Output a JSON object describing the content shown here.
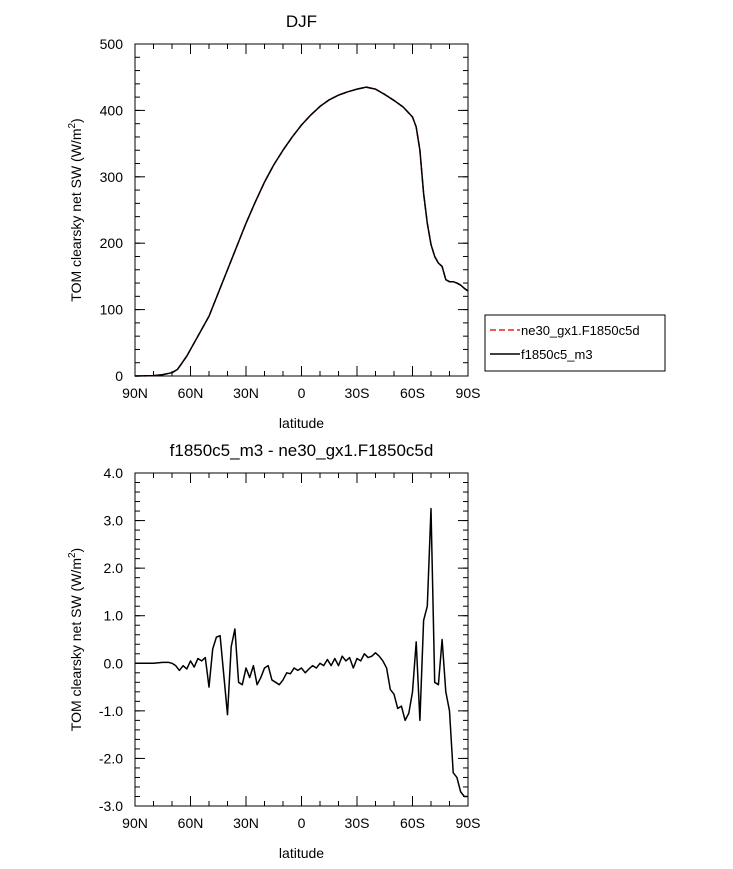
{
  "chart_data": [
    {
      "type": "line",
      "title": "DJF",
      "xlabel": "latitude",
      "ylabel_main": "TOM clearsky net SW (W/m",
      "ylabel_sup": "2",
      "ylabel_close": ")",
      "xlim": [
        -90,
        90
      ],
      "ylim": [
        0,
        500
      ],
      "xticks": [
        -90,
        -60,
        -30,
        0,
        30,
        60,
        90
      ],
      "xtick_labels": [
        "90N",
        "60N",
        "30N",
        "0",
        "30S",
        "60S",
        "90S"
      ],
      "yticks": [
        0,
        100,
        200,
        300,
        400,
        500
      ],
      "ytick_labels": [
        "0",
        "100",
        "200",
        "300",
        "400",
        "500"
      ],
      "legend_position": "right",
      "series": [
        {
          "name": "ne30_gx1.F1850c5d",
          "color": "#e8221c",
          "dashed": true,
          "x": [
            -90,
            -80,
            -75,
            -70,
            -67,
            -65,
            -62,
            -60,
            -55,
            -50,
            -45,
            -40,
            -35,
            -30,
            -25,
            -20,
            -15,
            -10,
            -5,
            0,
            5,
            10,
            15,
            20,
            25,
            30,
            35,
            40,
            45,
            50,
            55,
            60,
            62,
            64,
            66,
            68,
            70,
            72,
            74,
            76,
            78,
            80,
            82,
            84,
            86,
            88,
            90
          ],
          "values": [
            0,
            0.5,
            2,
            5,
            10,
            18,
            30,
            40,
            65,
            90,
            125,
            160,
            195,
            230,
            262,
            292,
            318,
            340,
            360,
            378,
            393,
            406,
            416,
            423,
            428,
            432,
            435,
            432,
            424,
            415,
            405,
            390,
            375,
            340,
            275,
            230,
            198,
            180,
            170,
            165,
            145,
            142,
            142,
            140,
            137,
            132,
            128
          ]
        },
        {
          "name": "f1850c5_m3",
          "color": "#000000",
          "dashed": false,
          "x": [
            -90,
            -80,
            -75,
            -70,
            -67,
            -65,
            -62,
            -60,
            -55,
            -50,
            -45,
            -40,
            -35,
            -30,
            -25,
            -20,
            -15,
            -10,
            -5,
            0,
            5,
            10,
            15,
            20,
            25,
            30,
            35,
            40,
            45,
            50,
            55,
            60,
            62,
            64,
            66,
            68,
            70,
            72,
            74,
            76,
            78,
            80,
            82,
            84,
            86,
            88,
            90
          ],
          "values": [
            0,
            0.5,
            2,
            5,
            10,
            18,
            30,
            40,
            65,
            90,
            125,
            160,
            195,
            230,
            262,
            292,
            318,
            340,
            360,
            378,
            393,
            406,
            416,
            423,
            428,
            432,
            435,
            432,
            424,
            415,
            405,
            390,
            375,
            340,
            275,
            230,
            198,
            180,
            170,
            165,
            145,
            142,
            142,
            140,
            137,
            132,
            128
          ]
        }
      ]
    },
    {
      "type": "line",
      "title": "f1850c5_m3 - ne30_gx1.F1850c5d",
      "xlabel": "latitude",
      "ylabel_main": "TOM clearsky net SW (W/m",
      "ylabel_sup": "2",
      "ylabel_close": ")",
      "xlim": [
        -90,
        90
      ],
      "ylim": [
        -3,
        4
      ],
      "xticks": [
        -90,
        -60,
        -30,
        0,
        30,
        60,
        90
      ],
      "xtick_labels": [
        "90N",
        "60N",
        "30N",
        "0",
        "30S",
        "60S",
        "90S"
      ],
      "yticks": [
        -3,
        -2,
        -1,
        0,
        1,
        2,
        3,
        4
      ],
      "ytick_labels": [
        "-3.0",
        "-2.0",
        "-1.0",
        "0.0",
        "1.0",
        "2.0",
        "3.0",
        "4.0"
      ],
      "series": [
        {
          "name": "f1850c5_m3 - ne30_gx1.F1850c5d",
          "color": "#000000",
          "dashed": false,
          "x": [
            -90,
            -85,
            -80,
            -75,
            -72,
            -70,
            -68,
            -66,
            -64,
            -62,
            -60,
            -58,
            -56,
            -54,
            -52,
            -50,
            -48,
            -46,
            -44,
            -42,
            -40,
            -38,
            -36,
            -34,
            -32,
            -30,
            -28,
            -26,
            -24,
            -22,
            -20,
            -18,
            -16,
            -14,
            -12,
            -10,
            -8,
            -6,
            -4,
            -2,
            0,
            2,
            4,
            6,
            8,
            10,
            12,
            14,
            16,
            18,
            20,
            22,
            24,
            26,
            28,
            30,
            32,
            34,
            36,
            38,
            40,
            42,
            44,
            46,
            48,
            50,
            52,
            54,
            56,
            58,
            60,
            62,
            64,
            66,
            68,
            70,
            72,
            74,
            76,
            78,
            80,
            82,
            84,
            86,
            88,
            90
          ],
          "values": [
            0,
            0,
            0,
            0.02,
            0.02,
            0,
            -0.05,
            -0.15,
            -0.05,
            -0.12,
            0.05,
            -0.08,
            0.1,
            0.05,
            0.12,
            -0.5,
            0.3,
            0.55,
            0.58,
            -0.25,
            -1.08,
            0.35,
            0.72,
            -0.4,
            -0.45,
            -0.1,
            -0.3,
            -0.05,
            -0.45,
            -0.3,
            -0.1,
            -0.05,
            -0.35,
            -0.4,
            -0.45,
            -0.35,
            -0.2,
            -0.22,
            -0.1,
            -0.15,
            -0.1,
            -0.2,
            -0.12,
            -0.05,
            -0.1,
            0,
            -0.05,
            0.08,
            -0.05,
            0.1,
            -0.05,
            0.15,
            0.05,
            0.12,
            -0.1,
            0.1,
            0.05,
            0.2,
            0.12,
            0.15,
            0.22,
            0.15,
            0.05,
            -0.1,
            -0.55,
            -0.65,
            -0.95,
            -0.9,
            -1.2,
            -1.05,
            -0.6,
            0.45,
            -1.2,
            0.9,
            1.2,
            3.25,
            -0.4,
            -0.45,
            0.5,
            -0.6,
            -1.0,
            -2.3,
            -2.4,
            -2.7,
            -2.8,
            -2.8
          ]
        }
      ]
    }
  ]
}
